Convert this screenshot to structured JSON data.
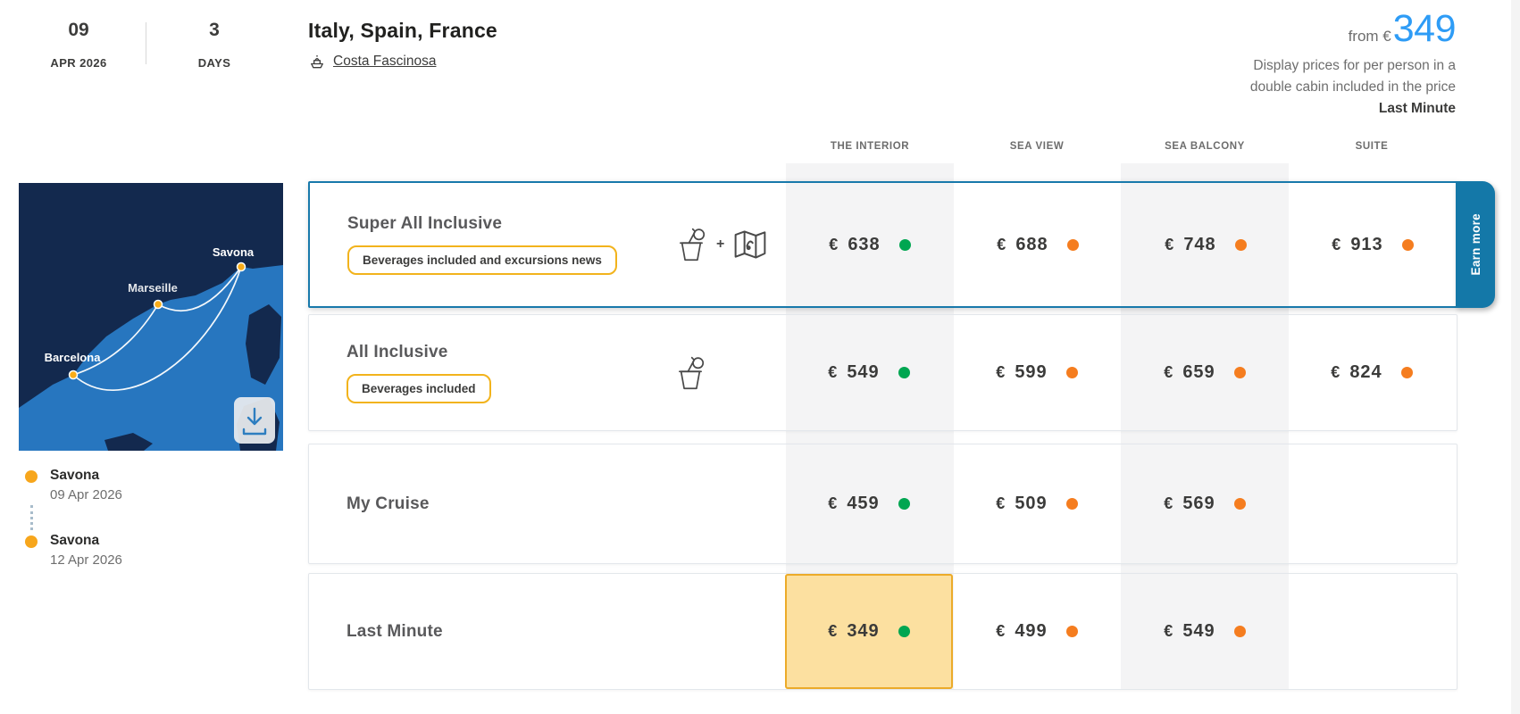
{
  "header": {
    "date": {
      "day": "09",
      "month": "APR 2026"
    },
    "duration": {
      "value": "3",
      "label": "DAYS"
    },
    "title": "Italy, Spain, France",
    "ship": {
      "name": "Costa Fascinosa"
    },
    "price_summary": {
      "from_label": "from €",
      "value": "349",
      "note_line1": "Display prices for per person in a",
      "note_line2": "double cabin included in the price",
      "highlight_label": "Last Minute"
    }
  },
  "map": {
    "ports": [
      "Savona",
      "Marseille",
      "Barcelona"
    ]
  },
  "itinerary": [
    {
      "port": "Savona",
      "date": "09 Apr 2026"
    },
    {
      "port": "Savona",
      "date": "12 Apr 2026"
    }
  ],
  "pricing": {
    "columns": [
      "THE INTERIOR",
      "SEA VIEW",
      "SEA BALCONY",
      "SUITE"
    ],
    "rows": [
      {
        "name": "Super All Inclusive",
        "badge": "Beverages included and excursions news",
        "icons": [
          "drink-icon",
          "map-icon"
        ],
        "selected": true,
        "side_tab": "Earn more",
        "prices": [
          {
            "currency": "€",
            "value": "638",
            "availability": "green"
          },
          {
            "currency": "€",
            "value": "688",
            "availability": "orange"
          },
          {
            "currency": "€",
            "value": "748",
            "availability": "orange"
          },
          {
            "currency": "€",
            "value": "913",
            "availability": "orange"
          }
        ]
      },
      {
        "name": "All Inclusive",
        "badge": "Beverages included",
        "icons": [
          "drink-icon"
        ],
        "prices": [
          {
            "currency": "€",
            "value": "549",
            "availability": "green"
          },
          {
            "currency": "€",
            "value": "599",
            "availability": "orange"
          },
          {
            "currency": "€",
            "value": "659",
            "availability": "orange"
          },
          {
            "currency": "€",
            "value": "824",
            "availability": "orange"
          }
        ]
      },
      {
        "name": "My Cruise",
        "prices": [
          {
            "currency": "€",
            "value": "459",
            "availability": "green"
          },
          {
            "currency": "€",
            "value": "509",
            "availability": "orange"
          },
          {
            "currency": "€",
            "value": "569",
            "availability": "orange"
          },
          null
        ]
      },
      {
        "name": "Last Minute",
        "prices": [
          {
            "currency": "€",
            "value": "349",
            "availability": "green",
            "highlight": true
          },
          {
            "currency": "€",
            "value": "499",
            "availability": "orange"
          },
          {
            "currency": "€",
            "value": "549",
            "availability": "orange"
          },
          null
        ]
      }
    ]
  },
  "colors": {
    "accent_blue": "#2e9cf6",
    "selected_border": "#1879ab",
    "earn_more_bg": "#1478a8",
    "available_green": "#00a651",
    "limited_orange": "#f57d1f",
    "badge_border": "#f2b31c",
    "highlight_bg": "#fce0a0",
    "highlight_border": "#ecab29",
    "port_dot": "#f7a61c",
    "map_sea": "#2776bf",
    "map_land": "#13294e"
  }
}
